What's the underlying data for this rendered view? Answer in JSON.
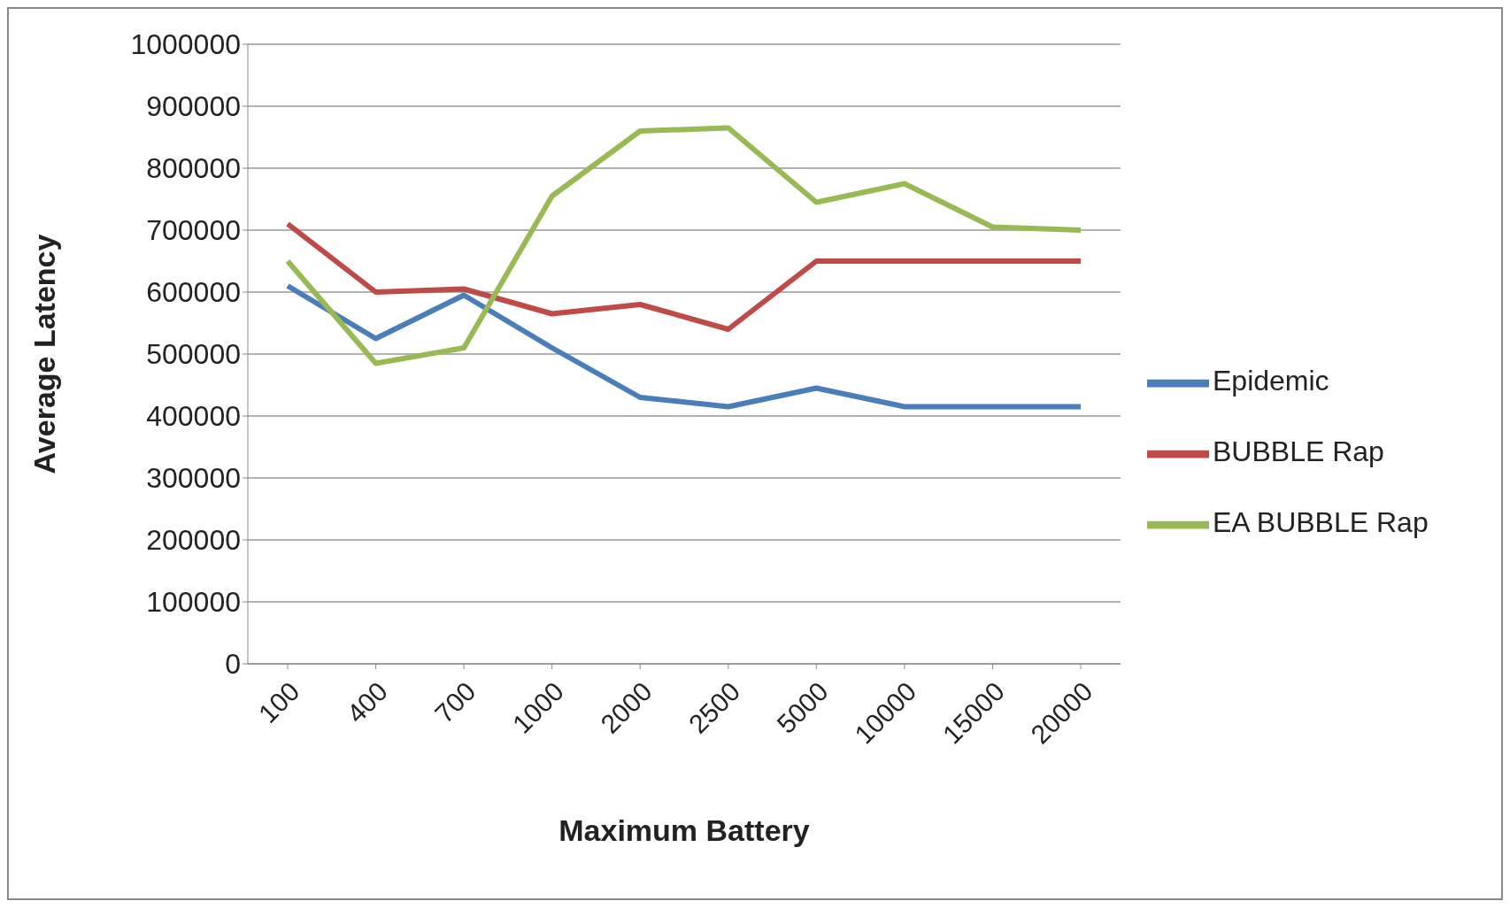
{
  "chart_data": {
    "type": "line",
    "xlabel": "Maximum Battery",
    "ylabel": "Average Latency",
    "categories": [
      "100",
      "400",
      "700",
      "1000",
      "2000",
      "2500",
      "5000",
      "10000",
      "15000",
      "20000"
    ],
    "series": [
      {
        "name": "Epidemic",
        "color": "#4a7ebb",
        "values": [
          610000,
          525000,
          595000,
          510000,
          430000,
          415000,
          445000,
          415000,
          415000,
          415000
        ]
      },
      {
        "name": "BUBBLE Rap",
        "color": "#be4b48",
        "values": [
          710000,
          600000,
          605000,
          565000,
          580000,
          540000,
          650000,
          650000,
          650000,
          650000
        ]
      },
      {
        "name": "EA BUBBLE Rap",
        "color": "#98b954",
        "values": [
          650000,
          485000,
          510000,
          755000,
          860000,
          865000,
          745000,
          775000,
          705000,
          700000
        ]
      }
    ],
    "ylim": [
      0,
      1000000
    ],
    "yticks": [
      0,
      100000,
      200000,
      300000,
      400000,
      500000,
      600000,
      700000,
      800000,
      900000,
      1000000
    ],
    "grid": "y",
    "legend": "right",
    "marker": "none",
    "line_style": "solid"
  }
}
